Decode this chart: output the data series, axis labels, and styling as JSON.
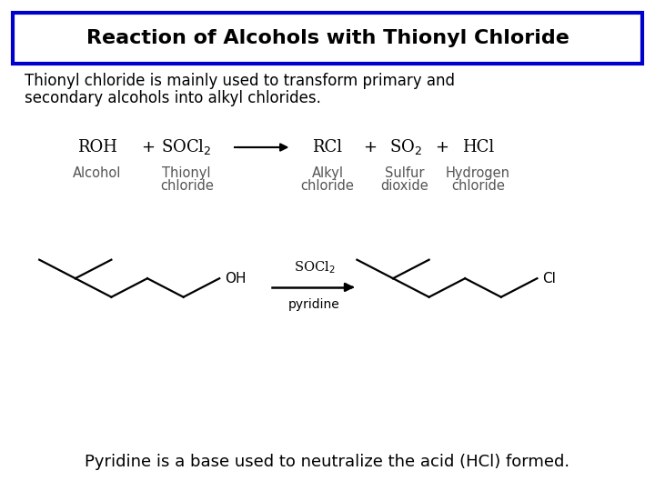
{
  "title": "Reaction of Alcohols with Thionyl Chloride",
  "title_box_color": "#0000cc",
  "title_text_color": "#000000",
  "bg_color": "#ffffff",
  "body_text1": "Thionyl chloride is mainly used to transform primary and",
  "body_text2": "secondary alcohols into alkyl chlorides.",
  "footer_text": "Pyridine is a base used to neutralize the acid (HCl) formed."
}
